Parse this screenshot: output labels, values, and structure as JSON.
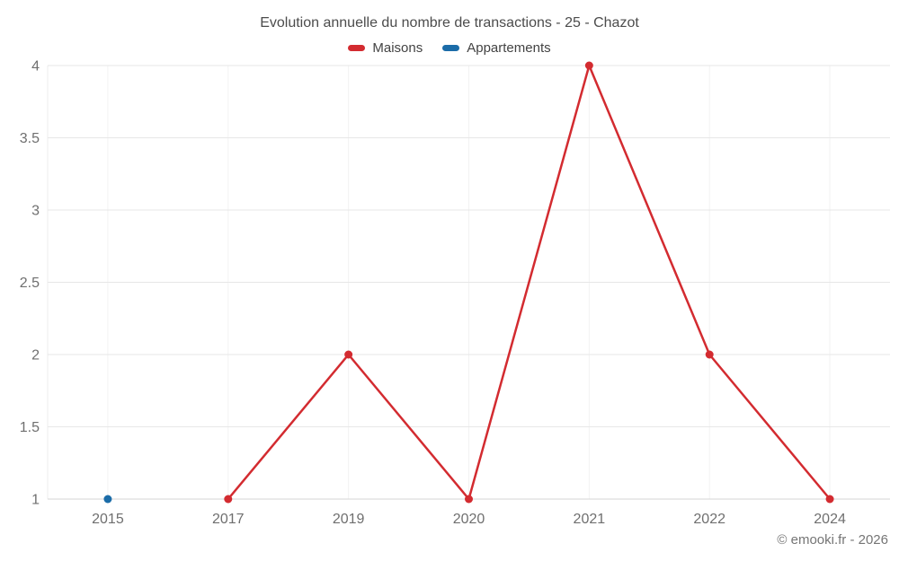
{
  "chart_data": {
    "type": "line",
    "title": "Evolution annuelle du nombre de transactions - 25 - Chazot",
    "categories": [
      "2015",
      "2017",
      "2019",
      "2020",
      "2021",
      "2022",
      "2024"
    ],
    "series": [
      {
        "name": "Maisons",
        "color": "#d32b30",
        "values": [
          null,
          1,
          2,
          1,
          4,
          2,
          1
        ]
      },
      {
        "name": "Appartements",
        "color": "#1b6ca8",
        "values": [
          1,
          null,
          null,
          null,
          null,
          null,
          null
        ]
      }
    ],
    "ylim": [
      1,
      4
    ],
    "yticks": [
      1,
      1.5,
      2,
      2.5,
      3,
      3.5,
      4
    ],
    "grid": true,
    "legend_position": "top",
    "footer": "© emooki.fr - 2026"
  },
  "colors": {
    "grid_h": "#e7e7e7",
    "grid_v": "#f2f2f2",
    "axis_bottom": "#d6d6d6",
    "axis_left": "#ececec",
    "tick_text": "#6f6f6f"
  }
}
